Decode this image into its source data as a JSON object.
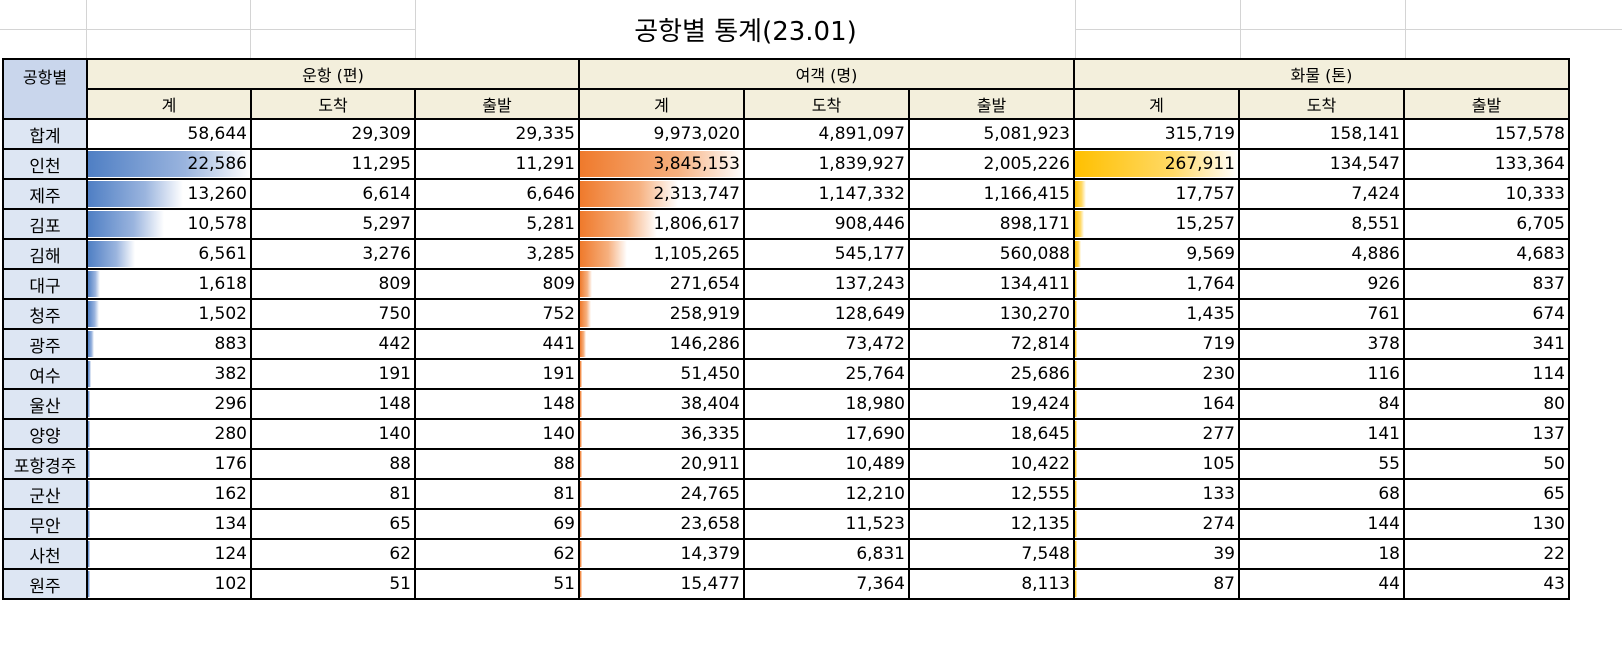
{
  "sheet": {
    "title": "공항별 통계(23.01)",
    "corner_label": "공항별",
    "groups": [
      "운항 (편)",
      "여객 (명)",
      "화물 (톤)"
    ],
    "subheaders": [
      "계",
      "도착",
      "출발",
      "계",
      "도착",
      "출발",
      "계",
      "도착",
      "출발"
    ],
    "rows": [
      {
        "label": "합계",
        "values": [
          "58,644",
          "29,309",
          "29,335",
          "9,973,020",
          "4,891,097",
          "5,081,923",
          "315,719",
          "158,141",
          "157,578"
        ]
      },
      {
        "label": "인천",
        "values": [
          "22,586",
          "11,295",
          "11,291",
          "3,845,153",
          "1,839,927",
          "2,005,226",
          "267,911",
          "134,547",
          "133,364"
        ]
      },
      {
        "label": "제주",
        "values": [
          "13,260",
          "6,614",
          "6,646",
          "2,313,747",
          "1,147,332",
          "1,166,415",
          "17,757",
          "7,424",
          "10,333"
        ]
      },
      {
        "label": "김포",
        "values": [
          "10,578",
          "5,297",
          "5,281",
          "1,806,617",
          "908,446",
          "898,171",
          "15,257",
          "8,551",
          "6,705"
        ]
      },
      {
        "label": "김해",
        "values": [
          "6,561",
          "3,276",
          "3,285",
          "1,105,265",
          "545,177",
          "560,088",
          "9,569",
          "4,886",
          "4,683"
        ]
      },
      {
        "label": "대구",
        "values": [
          "1,618",
          "809",
          "809",
          "271,654",
          "137,243",
          "134,411",
          "1,764",
          "926",
          "837"
        ]
      },
      {
        "label": "청주",
        "values": [
          "1,502",
          "750",
          "752",
          "258,919",
          "128,649",
          "130,270",
          "1,435",
          "761",
          "674"
        ]
      },
      {
        "label": "광주",
        "values": [
          "883",
          "442",
          "441",
          "146,286",
          "73,472",
          "72,814",
          "719",
          "378",
          "341"
        ]
      },
      {
        "label": "여수",
        "values": [
          "382",
          "191",
          "191",
          "51,450",
          "25,764",
          "25,686",
          "230",
          "116",
          "114"
        ]
      },
      {
        "label": "울산",
        "values": [
          "296",
          "148",
          "148",
          "38,404",
          "18,980",
          "19,424",
          "164",
          "84",
          "80"
        ]
      },
      {
        "label": "양양",
        "values": [
          "280",
          "140",
          "140",
          "36,335",
          "17,690",
          "18,645",
          "277",
          "141",
          "137"
        ]
      },
      {
        "label": "포항경주",
        "values": [
          "176",
          "88",
          "88",
          "20,911",
          "10,489",
          "10,422",
          "105",
          "55",
          "50"
        ]
      },
      {
        "label": "군산",
        "values": [
          "162",
          "81",
          "81",
          "24,765",
          "12,210",
          "12,555",
          "133",
          "68",
          "65"
        ]
      },
      {
        "label": "무안",
        "values": [
          "134",
          "65",
          "69",
          "23,658",
          "11,523",
          "12,135",
          "274",
          "144",
          "130"
        ]
      },
      {
        "label": "사천",
        "values": [
          "124",
          "62",
          "62",
          "14,379",
          "6,831",
          "7,548",
          "39",
          "18",
          "22"
        ]
      },
      {
        "label": "원주",
        "values": [
          "102",
          "51",
          "51",
          "15,477",
          "7,364",
          "8,113",
          "87",
          "44",
          "43"
        ]
      }
    ],
    "data_bar_colors": {
      "flights": "#4f7fc4",
      "passengers": "#ef7a2c",
      "cargo": "#ffc000"
    },
    "data_bar_max": {
      "flights": 22586,
      "passengers": 3845153,
      "cargo": 267911
    }
  }
}
